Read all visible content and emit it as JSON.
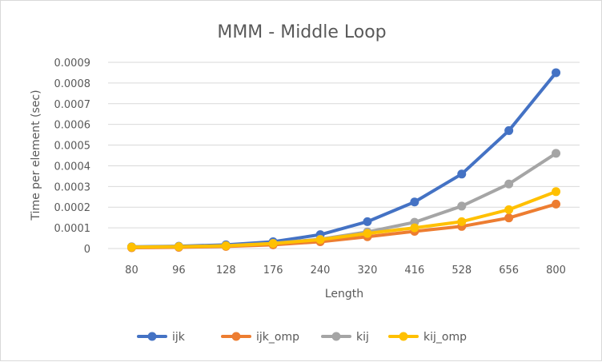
{
  "chart_data": {
    "type": "line",
    "title": "MMM - Middle Loop",
    "xlabel": "Length",
    "ylabel": "Time per element (sec)",
    "categories": [
      "80",
      "96",
      "128",
      "176",
      "240",
      "320",
      "416",
      "528",
      "656",
      "800"
    ],
    "yticks": [
      "0",
      "0.0001",
      "0.0002",
      "0.0003",
      "0.0004",
      "0.0005",
      "0.0006",
      "0.0007",
      "0.0008",
      "0.0009"
    ],
    "ylim": [
      0,
      0.0009
    ],
    "grid": true,
    "legend_position": "bottom",
    "series": [
      {
        "name": "ijk",
        "color": "#4472C4",
        "values": [
          8e-06,
          1.1e-05,
          1.8e-05,
          3.3e-05,
          6.7e-05,
          0.00013,
          0.000225,
          0.00036,
          0.00057,
          0.00085
        ]
      },
      {
        "name": "ijk_omp",
        "color": "#ED7D31",
        "values": [
          4e-06,
          6e-06,
          1e-05,
          1.8e-05,
          3.3e-05,
          5.7e-05,
          8.3e-05,
          0.000107,
          0.000148,
          0.000215
        ]
      },
      {
        "name": "kij",
        "color": "#A5A5A5",
        "values": [
          7e-06,
          9e-06,
          1.4e-05,
          2.5e-05,
          4.5e-05,
          8e-05,
          0.000127,
          0.000205,
          0.000312,
          0.00046
        ]
      },
      {
        "name": "kij_omp",
        "color": "#FFC000",
        "values": [
          7e-06,
          9e-06,
          1.3e-05,
          2.4e-05,
          4.3e-05,
          7.3e-05,
          0.0001,
          0.00013,
          0.000188,
          0.000275
        ]
      }
    ]
  }
}
